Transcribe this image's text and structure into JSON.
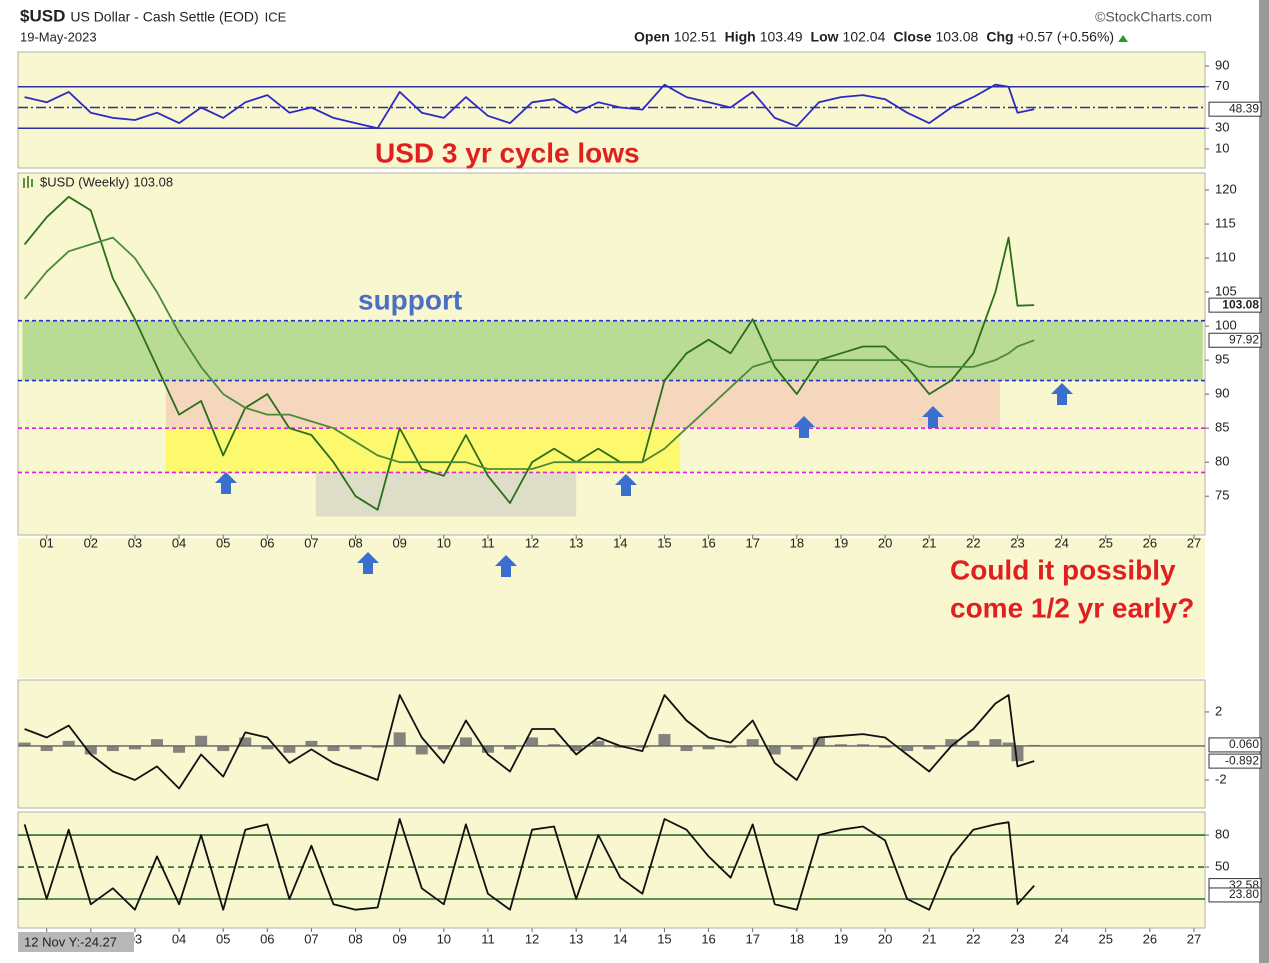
{
  "header": {
    "symbol": "$USD",
    "name": "US Dollar - Cash Settle (EOD)",
    "exchange": "ICE",
    "date": "19-May-2023",
    "source": "©StockCharts.com",
    "quote": [
      {
        "label": "Open",
        "value": 102.51
      },
      {
        "label": "High",
        "value": 103.49
      },
      {
        "label": "Low",
        "value": 102.04
      },
      {
        "label": "Close",
        "value": 103.08
      },
      {
        "label": "Chg",
        "value": "+0.57 (+0.56%)"
      }
    ]
  },
  "annotations": [
    "USD 3 yr cycle lows",
    "support",
    "Could it possibly",
    "come 1/2 yr early?"
  ],
  "cursor_label": "12 Nov Y:-24.27",
  "chart_data": [
    {
      "type": "line",
      "xlim": [
        2000.35,
        2027.25
      ],
      "ylim": [
        -8.3,
        103.5
      ],
      "yticks": [
        10,
        30,
        70,
        90
      ],
      "hlines": [
        {
          "value": 70,
          "color": "#30309a",
          "dash": ""
        },
        {
          "value": 50,
          "color": "#30309a",
          "dash": "10 3 2 3"
        },
        {
          "value": 30,
          "color": "#30309a",
          "dash": ""
        }
      ],
      "x": [
        2000.5,
        2001,
        2001.5,
        2002,
        2002.5,
        2003,
        2003.5,
        2004,
        2004.5,
        2005,
        2005.5,
        2006,
        2006.5,
        2007,
        2007.5,
        2008,
        2008.5,
        2009,
        2009.5,
        2010,
        2010.5,
        2011,
        2011.5,
        2012,
        2012.5,
        2013,
        2013.5,
        2014,
        2014.5,
        2015,
        2015.5,
        2016,
        2016.5,
        2017,
        2017.5,
        2018,
        2018.5,
        2019,
        2019.5,
        2020,
        2020.5,
        2021,
        2021.5,
        2022,
        2022.5,
        2022.8,
        2023,
        2023.38
      ],
      "series": [
        {
          "color": "#2b2bc4",
          "style": "line",
          "label_last": true,
          "values": [
            60,
            55,
            65,
            45,
            40,
            38,
            45,
            35,
            50,
            40,
            55,
            62,
            45,
            50,
            40,
            35,
            30,
            65,
            45,
            40,
            60,
            42,
            35,
            55,
            58,
            45,
            55,
            50,
            48,
            72,
            60,
            55,
            50,
            65,
            40,
            32,
            55,
            60,
            62,
            58,
            45,
            35,
            50,
            60,
            72,
            70,
            45,
            48.39
          ]
        }
      ]
    },
    {
      "type": "line",
      "xlim": [
        2000.35,
        2027.25
      ],
      "ylim": [
        69.3,
        122.5
      ],
      "yticks": [
        75,
        80,
        85,
        90,
        95,
        100,
        105,
        110,
        115,
        120
      ],
      "xticks": [
        {
          "value": 2001,
          "label": "01"
        },
        {
          "value": 2002,
          "label": "02"
        },
        {
          "value": 2003,
          "label": "03"
        },
        {
          "value": 2004,
          "label": "04"
        },
        {
          "value": 2005,
          "label": "05"
        },
        {
          "value": 2006,
          "label": "06"
        },
        {
          "value": 2007,
          "label": "07"
        },
        {
          "value": 2008,
          "label": "08"
        },
        {
          "value": 2009,
          "label": "09"
        },
        {
          "value": 2010,
          "label": "10"
        },
        {
          "value": 2011,
          "label": "11"
        },
        {
          "value": 2012,
          "label": "12"
        },
        {
          "value": 2013,
          "label": "13"
        },
        {
          "value": 2014,
          "label": "14"
        },
        {
          "value": 2015,
          "label": "15"
        },
        {
          "value": 2016,
          "label": "16"
        },
        {
          "value": 2017,
          "label": "17"
        },
        {
          "value": 2018,
          "label": "18"
        },
        {
          "value": 2019,
          "label": "19"
        },
        {
          "value": 2020,
          "label": "20"
        },
        {
          "value": 2021,
          "label": "21"
        },
        {
          "value": 2022,
          "label": "22"
        },
        {
          "value": 2023,
          "label": "23"
        },
        {
          "value": 2024,
          "label": "24"
        },
        {
          "value": 2025,
          "label": "25"
        },
        {
          "value": 2026,
          "label": "26"
        },
        {
          "value": 2027,
          "label": "27"
        }
      ],
      "bands": [
        {
          "x": [
            2000.45,
            2027.2
          ],
          "y": [
            92,
            100.8
          ],
          "color": "rgba(110,185,80,0.45)"
        },
        {
          "x": [
            2003.7,
            2022.6
          ],
          "y": [
            85,
            92
          ],
          "color": "rgba(240,175,165,0.45)"
        },
        {
          "x": [
            2003.7,
            2015.35
          ],
          "y": [
            78.5,
            85
          ],
          "color": "rgba(255,250,70,0.7)"
        },
        {
          "x": [
            2007.1,
            2013
          ],
          "y": [
            72,
            78.5
          ],
          "color": "rgba(190,190,190,0.45)"
        }
      ],
      "hlines": [
        {
          "value": 100.8,
          "color": "#2233cc",
          "dash": "4 3"
        },
        {
          "value": 92,
          "color": "#2233cc",
          "dash": "4 3"
        },
        {
          "value": 85,
          "color": "#e020e0",
          "dash": "4 3"
        },
        {
          "value": 78.5,
          "color": "#e020e0",
          "dash": "4 3"
        }
      ],
      "x": [
        2000.5,
        2001,
        2001.5,
        2002,
        2002.5,
        2003,
        2003.5,
        2004,
        2004.5,
        2005,
        2005.5,
        2006,
        2006.5,
        2007,
        2007.5,
        2008,
        2008.5,
        2009,
        2009.5,
        2010,
        2010.5,
        2011,
        2011.5,
        2012,
        2012.5,
        2013,
        2013.5,
        2014,
        2014.5,
        2015,
        2015.5,
        2016,
        2016.5,
        2017,
        2017.5,
        2018,
        2018.5,
        2019,
        2019.5,
        2020,
        2020.5,
        2021,
        2021.5,
        2022,
        2022.5,
        2022.8,
        2023,
        2023.38
      ],
      "series": [
        {
          "name": "$USD (Weekly)",
          "color": "#2a6e1a",
          "style": "line",
          "label_last": true,
          "values": [
            112,
            116,
            119,
            117,
            107,
            101,
            94,
            87,
            89,
            81,
            88,
            90,
            85,
            84,
            80,
            75,
            73,
            85,
            79,
            78,
            84,
            78,
            74,
            80,
            82,
            80,
            82,
            80,
            80,
            92,
            96,
            98,
            96,
            101,
            94,
            90,
            95,
            96,
            97,
            97,
            94,
            90,
            92,
            96,
            105,
            113,
            103,
            103.08
          ]
        },
        {
          "color": "#4c8a3a",
          "style": "line",
          "label_last": true,
          "values": [
            104,
            108,
            111,
            112,
            113,
            110,
            105,
            99,
            94,
            90,
            88,
            87,
            87,
            86,
            85,
            83,
            81,
            80,
            80,
            80,
            80,
            79,
            79,
            79,
            80,
            80,
            80,
            80,
            80,
            82,
            85,
            88,
            91,
            94,
            95,
            95,
            95,
            95,
            95,
            95,
            95,
            94,
            94,
            94,
            95,
            96,
            97,
            97.92
          ]
        }
      ]
    },
    {
      "type": "line",
      "xlim": [
        2000.35,
        2027.25
      ],
      "ylim": [
        -3.65,
        3.88
      ],
      "yticks": [
        -2,
        2
      ],
      "hlines": [
        {
          "value": 0,
          "color": "#777777",
          "dash": ""
        }
      ],
      "x": [
        2000.5,
        2001,
        2001.5,
        2002,
        2002.5,
        2003,
        2003.5,
        2004,
        2004.5,
        2005,
        2005.5,
        2006,
        2006.5,
        2007,
        2007.5,
        2008,
        2008.5,
        2009,
        2009.5,
        2010,
        2010.5,
        2011,
        2011.5,
        2012,
        2012.5,
        2013,
        2013.5,
        2014,
        2014.5,
        2015,
        2015.5,
        2016,
        2016.5,
        2017,
        2017.5,
        2018,
        2018.5,
        2019,
        2019.5,
        2020,
        2020.5,
        2021,
        2021.5,
        2022,
        2022.5,
        2022.8,
        2023,
        2023.38
      ],
      "series": [
        {
          "color": "#666666",
          "style": "histogram",
          "label_last": true,
          "values": [
            0.2,
            -0.3,
            0.3,
            -0.5,
            -0.3,
            -0.2,
            0.4,
            -0.4,
            0.6,
            -0.3,
            0.5,
            -0.2,
            -0.4,
            0.3,
            -0.3,
            -0.2,
            -0.1,
            0.8,
            -0.5,
            -0.2,
            0.5,
            -0.4,
            -0.2,
            0.5,
            0.1,
            -0.3,
            0.3,
            -0.1,
            -0.1,
            0.7,
            -0.3,
            -0.2,
            -0.1,
            0.4,
            -0.5,
            -0.2,
            0.5,
            0.1,
            0.1,
            -0.1,
            -0.3,
            -0.2,
            0.4,
            0.3,
            0.4,
            0.2,
            -0.9,
            0.06
          ],
          "value_labels": [
            null,
            null,
            null,
            null,
            null,
            null,
            null,
            null,
            null,
            null,
            null,
            null,
            null,
            null,
            null,
            null,
            null,
            null,
            null,
            null,
            null,
            null,
            null,
            null,
            null,
            null,
            null,
            null,
            null,
            null,
            null,
            null,
            null,
            null,
            null,
            null,
            null,
            null,
            null,
            null,
            null,
            null,
            null,
            null,
            null,
            null,
            null,
            "0.060"
          ]
        },
        {
          "color": "#111111",
          "style": "line",
          "label_last": true,
          "values": [
            1,
            0.5,
            1.2,
            -0.5,
            -1.5,
            -2,
            -1.2,
            -2.5,
            -0.5,
            -1.8,
            0.8,
            0.5,
            -1,
            -0.2,
            -1,
            -1.5,
            -2,
            3,
            0.5,
            -1,
            1.5,
            -0.5,
            -1.5,
            1,
            1,
            -0.5,
            0.5,
            0,
            -0.3,
            3,
            1.5,
            0.5,
            0.2,
            1.5,
            -1,
            -2,
            0.5,
            0.6,
            0.7,
            0.5,
            -0.5,
            -1.5,
            0,
            1,
            2.5,
            3,
            -1.2,
            -0.892
          ]
        }
      ]
    },
    {
      "type": "line",
      "xlim": [
        2000.35,
        2027.25
      ],
      "ylim": [
        -7.2,
        101.6
      ],
      "yticks": [
        50,
        80
      ],
      "hlines": [
        {
          "value": 80,
          "color": "#2f6a2f",
          "dash": ""
        },
        {
          "value": 50,
          "color": "#2f6a2f",
          "dash": "6 4"
        },
        {
          "value": 20,
          "color": "#2f6a2f",
          "dash": ""
        }
      ],
      "extra_labels": [
        {
          "value": 23.8,
          "label": "23.80"
        }
      ],
      "x": [
        2000.5,
        2001,
        2001.5,
        2002,
        2002.5,
        2003,
        2003.5,
        2004,
        2004.5,
        2005,
        2005.5,
        2006,
        2006.5,
        2007,
        2007.5,
        2008,
        2008.5,
        2009,
        2009.5,
        2010,
        2010.5,
        2011,
        2011.5,
        2012,
        2012.5,
        2013,
        2013.5,
        2014,
        2014.5,
        2015,
        2015.5,
        2016,
        2016.5,
        2017,
        2017.5,
        2018,
        2018.5,
        2019,
        2019.5,
        2020,
        2020.5,
        2021,
        2021.5,
        2022,
        2022.5,
        2022.8,
        2023,
        2023.38
      ],
      "series": [
        {
          "color": "#111111",
          "style": "line",
          "label_last": true,
          "values": [
            90,
            20,
            85,
            15,
            30,
            10,
            60,
            15,
            80,
            10,
            85,
            90,
            20,
            70,
            15,
            10,
            12,
            95,
            30,
            15,
            90,
            25,
            10,
            85,
            88,
            20,
            80,
            40,
            25,
            95,
            85,
            60,
            40,
            90,
            15,
            10,
            80,
            85,
            88,
            75,
            20,
            10,
            60,
            85,
            90,
            92,
            15,
            32.58
          ]
        }
      ]
    }
  ]
}
